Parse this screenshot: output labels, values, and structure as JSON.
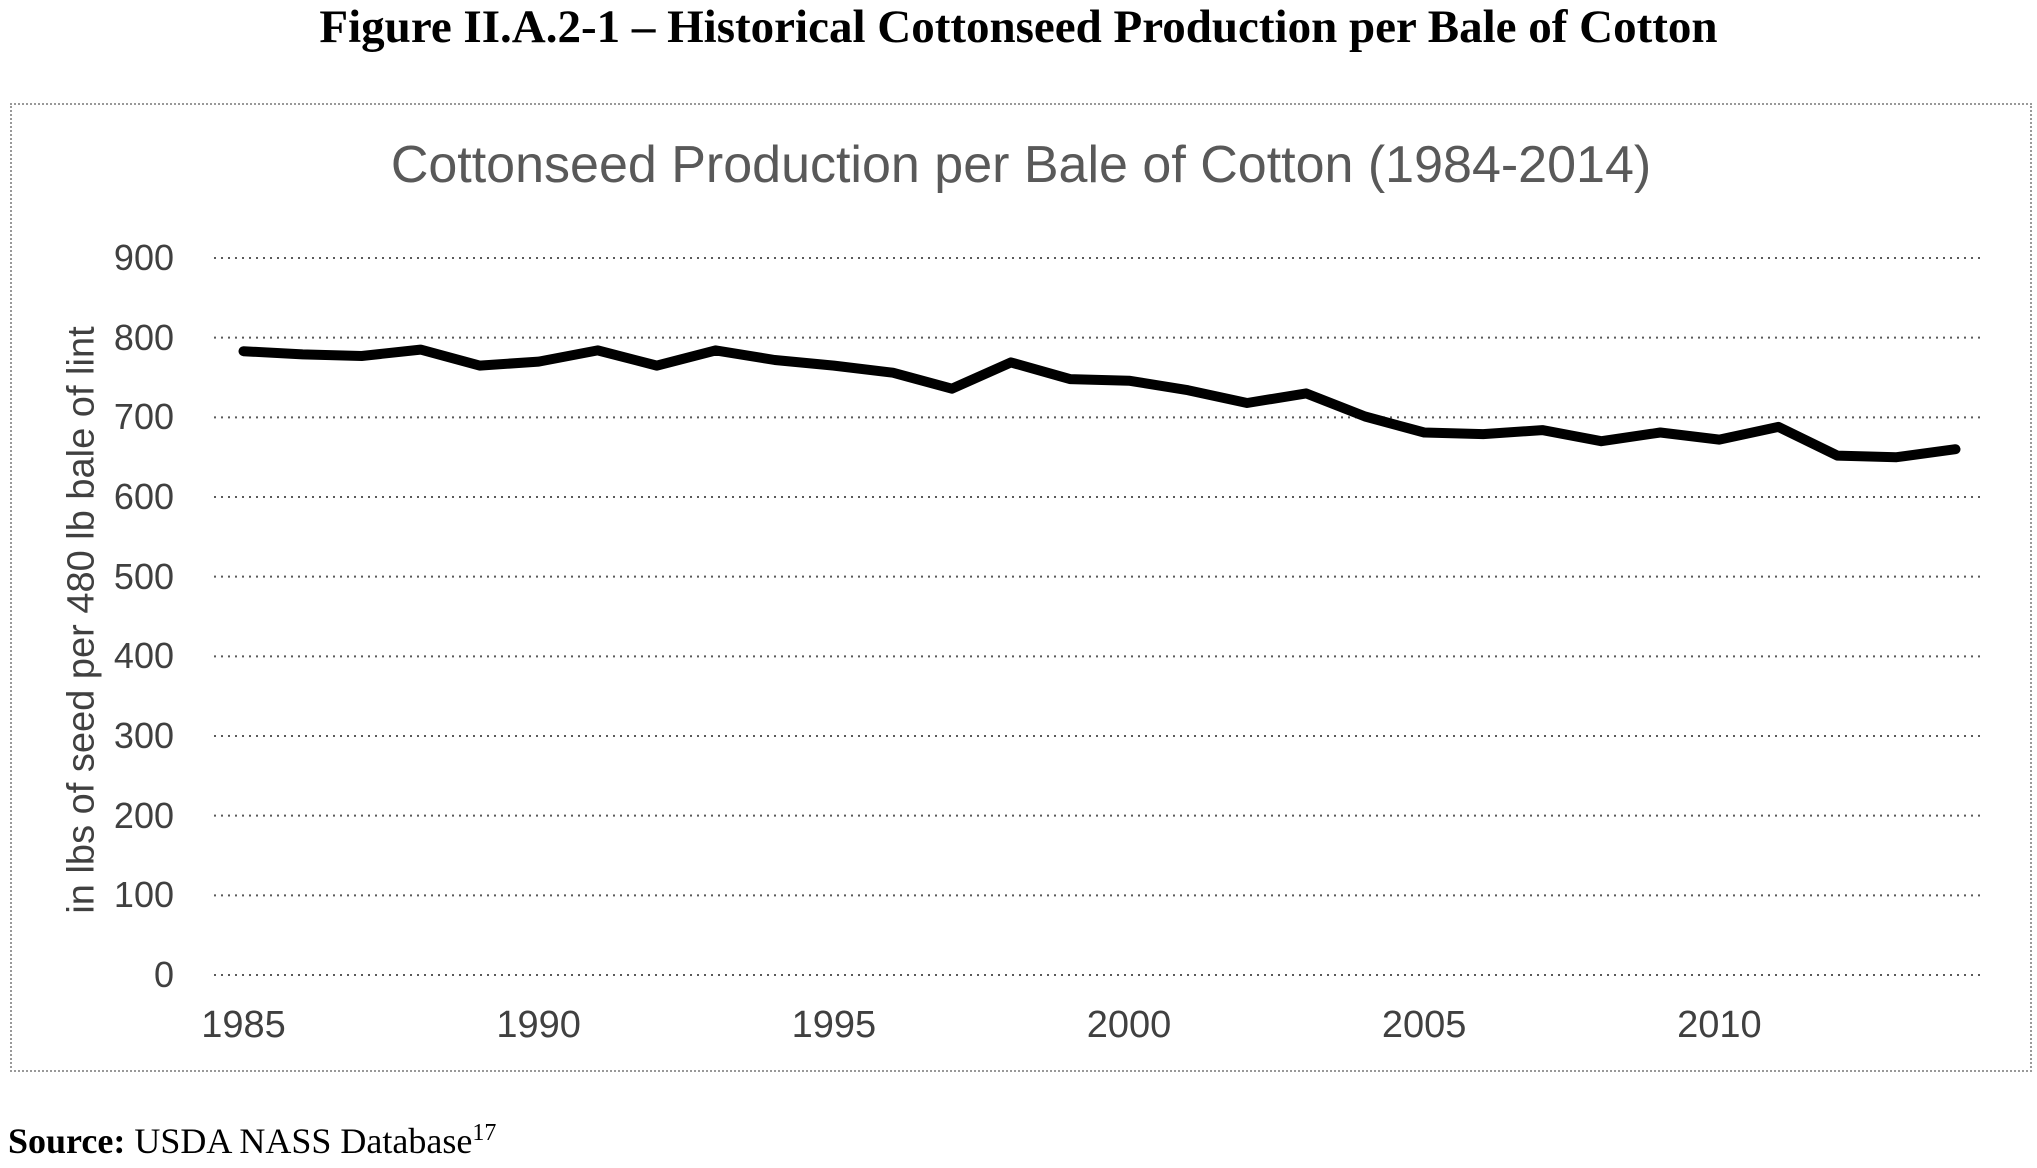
{
  "figure": {
    "title": "Figure II.A.2-1 – Historical Cottonseed Production per Bale of Cotton",
    "source_label": "Source:",
    "source_text": " USDA NASS Database",
    "source_superscript": "17"
  },
  "chart_data": {
    "type": "line",
    "title": "Cottonseed Production per Bale of Cotton (1984-2014)",
    "ylabel": "in lbs of seed per 480 lb bale of lint",
    "xlabel": "",
    "x": [
      1985,
      1986,
      1987,
      1988,
      1989,
      1990,
      1991,
      1992,
      1993,
      1994,
      1995,
      1996,
      1997,
      1998,
      1999,
      2000,
      2001,
      2002,
      2003,
      2004,
      2005,
      2006,
      2007,
      2008,
      2009,
      2010,
      2011,
      2012,
      2013,
      2014
    ],
    "values": [
      783,
      779,
      777,
      785,
      765,
      770,
      784,
      765,
      784,
      772,
      765,
      756,
      736,
      769,
      748,
      746,
      734,
      718,
      730,
      701,
      681,
      679,
      684,
      670,
      681,
      672,
      688,
      652,
      650,
      660
    ],
    "ylim": [
      0,
      900
    ],
    "y_ticks": [
      0,
      100,
      200,
      300,
      400,
      500,
      600,
      700,
      800,
      900
    ],
    "x_tick_labels": [
      1985,
      1990,
      1995,
      2000,
      2005,
      2010
    ],
    "grid": "horizontal-dotted",
    "legend": "none",
    "line_color": "#000000",
    "title_color": "#595959",
    "axis_text_color": "#404040",
    "gridline_color": "#5a5a5a"
  }
}
